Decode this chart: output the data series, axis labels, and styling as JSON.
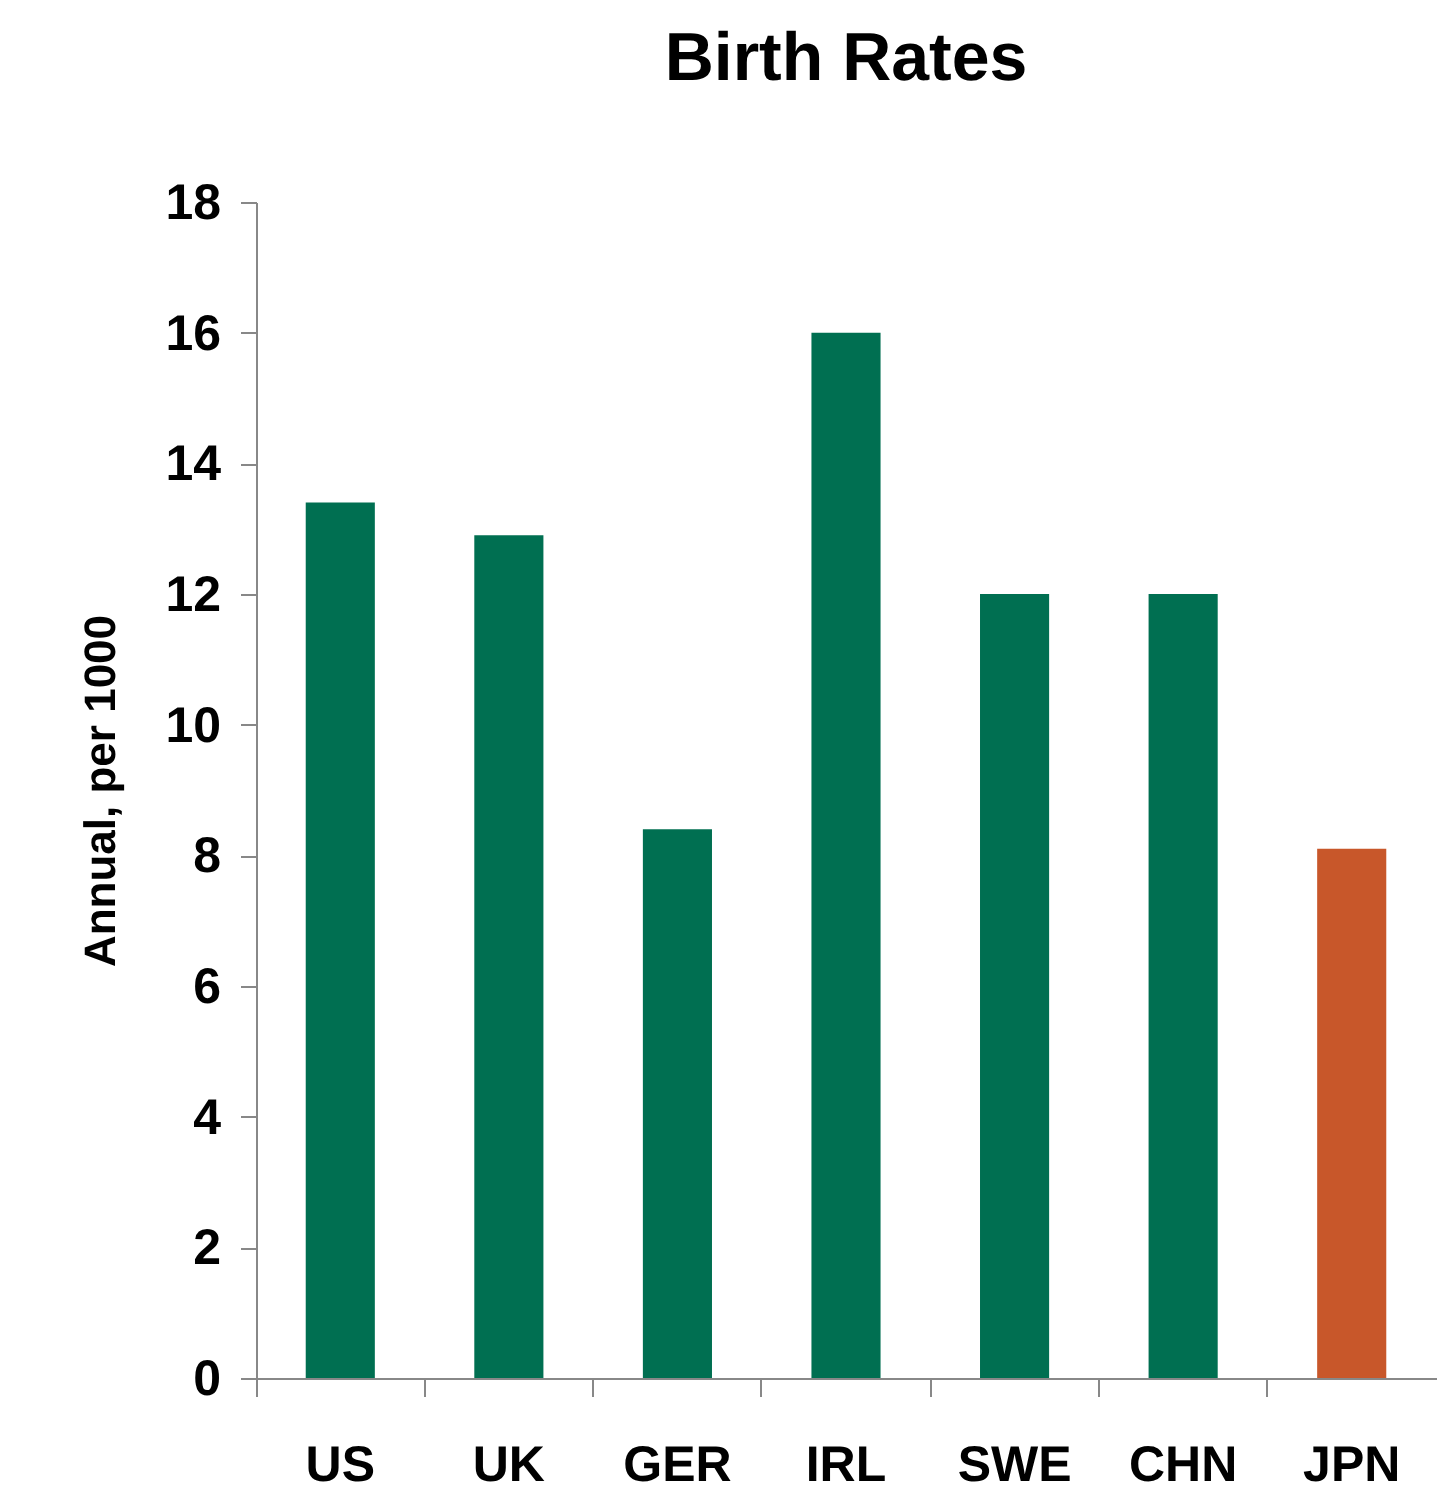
{
  "chart_data": {
    "type": "bar",
    "title": "Birth Rates",
    "ylabel": "Annual, per 1000",
    "categories": [
      "US",
      "UK",
      "GER",
      "IRL",
      "SWE",
      "CHN",
      "JPN"
    ],
    "values": [
      13.4,
      12.9,
      8.4,
      16.0,
      12.0,
      12.0,
      8.1
    ],
    "colors": [
      "#006f51",
      "#006f51",
      "#006f51",
      "#006f51",
      "#006f51",
      "#006f51",
      "#c8572a"
    ],
    "ylim": [
      0,
      18
    ],
    "yticks": [
      0,
      2,
      4,
      6,
      8,
      10,
      12,
      14,
      16,
      18
    ],
    "grid": false
  }
}
